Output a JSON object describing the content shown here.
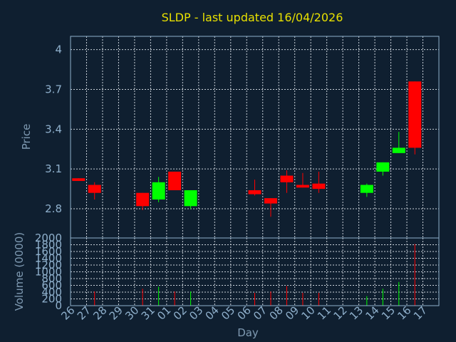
{
  "chart_data": {
    "type": "candlestick",
    "title": "SLDP - last updated 16/04/2026",
    "price_axis": {
      "label": "Price",
      "ticks": [
        2.8,
        3.1,
        3.4,
        3.7,
        4
      ],
      "tick_labels": [
        "2.8",
        "3.1",
        "3.4",
        "3.7",
        "4"
      ],
      "ylim": [
        2.58,
        4.1
      ]
    },
    "volume_axis": {
      "label": "Volume (0000)",
      "ticks": [
        0,
        200,
        400,
        600,
        800,
        1000,
        1200,
        1400,
        1600,
        1800,
        2000
      ],
      "tick_labels": [
        "0",
        "200",
        "400",
        "600",
        "800",
        "1000",
        "1200",
        "1400",
        "1600",
        "1800",
        "2000"
      ],
      "ylim": [
        0,
        2000
      ]
    },
    "x_axis": {
      "label": "Day",
      "tick_labels": [
        "26",
        "27",
        "28",
        "29",
        "30",
        "31",
        "01",
        "02",
        "03",
        "04",
        "05",
        "06",
        "07",
        "08",
        "09",
        "10",
        "11",
        "12",
        "13",
        "14",
        "15",
        "16",
        "17"
      ]
    },
    "grid": true,
    "up_color": "#00ff00",
    "down_color": "#ff0000",
    "candles": [
      {
        "day": "26",
        "open": 3.03,
        "close": 3.01,
        "high": 3.03,
        "low": 3.01,
        "volume": 0
      },
      {
        "day": "27",
        "open": 2.98,
        "close": 2.92,
        "high": 3.0,
        "low": 2.87,
        "volume": 420
      },
      {
        "day": "30",
        "open": 2.92,
        "close": 2.82,
        "high": 2.92,
        "low": 2.79,
        "volume": 500
      },
      {
        "day": "31",
        "open": 2.87,
        "close": 3.0,
        "high": 3.04,
        "low": 2.85,
        "volume": 560
      },
      {
        "day": "01",
        "open": 3.08,
        "close": 2.94,
        "high": 3.08,
        "low": 2.94,
        "volume": 420
      },
      {
        "day": "02",
        "open": 2.82,
        "close": 2.94,
        "high": 2.94,
        "low": 2.8,
        "volume": 420
      },
      {
        "day": "06",
        "open": 2.94,
        "close": 2.91,
        "high": 3.02,
        "low": 2.9,
        "volume": 380
      },
      {
        "day": "07",
        "open": 2.88,
        "close": 2.84,
        "high": 2.88,
        "low": 2.74,
        "volume": 420
      },
      {
        "day": "08",
        "open": 3.05,
        "close": 3.0,
        "high": 3.09,
        "low": 2.92,
        "volume": 580
      },
      {
        "day": "09",
        "open": 2.98,
        "close": 2.96,
        "high": 3.07,
        "low": 2.96,
        "volume": 380
      },
      {
        "day": "10",
        "open": 2.99,
        "close": 2.95,
        "high": 3.08,
        "low": 2.92,
        "volume": 380
      },
      {
        "day": "13",
        "open": 2.92,
        "close": 2.98,
        "high": 2.99,
        "low": 2.89,
        "volume": 280
      },
      {
        "day": "14",
        "open": 3.08,
        "close": 3.15,
        "high": 3.15,
        "low": 3.05,
        "volume": 500
      },
      {
        "day": "15",
        "open": 3.22,
        "close": 3.26,
        "high": 3.38,
        "low": 3.22,
        "volume": 700
      },
      {
        "day": "16",
        "open": 3.76,
        "close": 3.26,
        "high": 3.76,
        "low": 3.21,
        "volume": 1820
      }
    ]
  }
}
